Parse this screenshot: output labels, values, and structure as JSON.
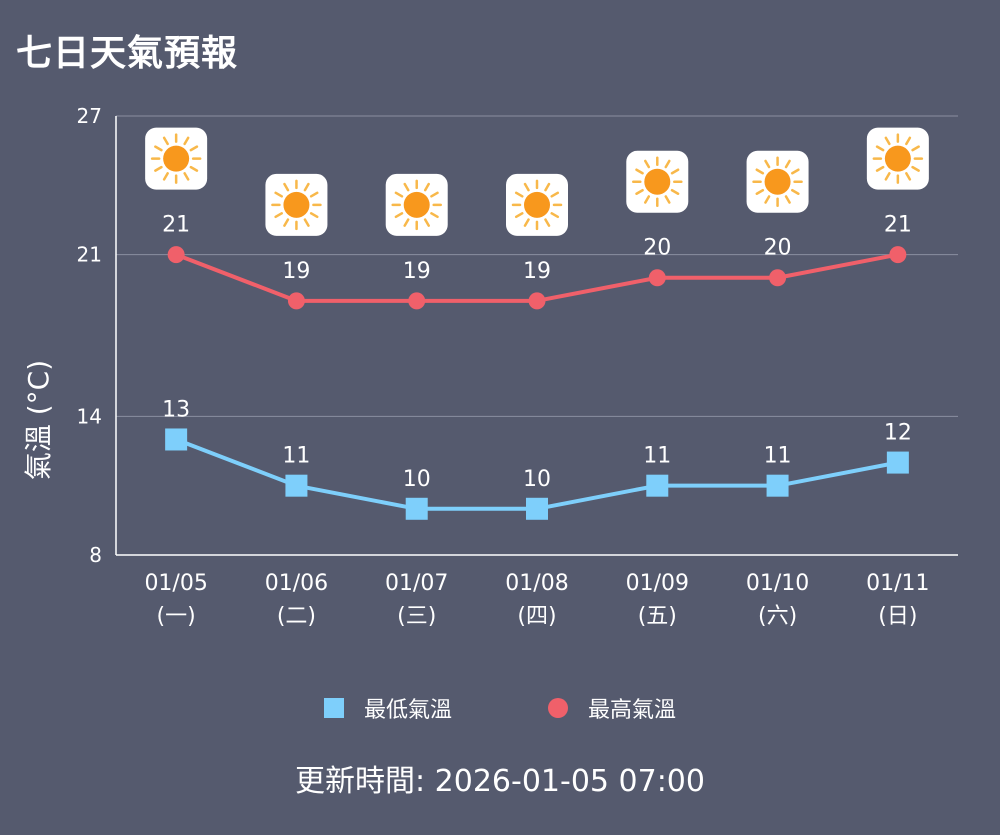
{
  "title": "七日天氣預報",
  "updated_label": "更新時間: 2026-01-05 07:00",
  "icons": [
    "sun-icon",
    "sun-icon",
    "sun-icon",
    "sun-icon",
    "sun-icon",
    "sun-icon",
    "sun-icon"
  ],
  "chart_data": {
    "type": "line",
    "categories": [
      "01/05",
      "01/06",
      "01/07",
      "01/08",
      "01/09",
      "01/10",
      "01/11"
    ],
    "weekdays": [
      "(一)",
      "(二)",
      "(三)",
      "(四)",
      "(五)",
      "(六)",
      "(日)"
    ],
    "ylabel": "氣溫 (°C)",
    "yticks": [
      8,
      14,
      21,
      27
    ],
    "ylim": [
      8,
      27
    ],
    "grid": true,
    "legend_position": "bottom",
    "series": [
      {
        "name": "最低氣溫",
        "marker": "square",
        "color": "#7ecffb",
        "values": [
          13,
          11,
          10,
          10,
          11,
          11,
          12
        ]
      },
      {
        "name": "最高氣溫",
        "marker": "circle",
        "color": "#f0606a",
        "values": [
          21,
          19,
          19,
          19,
          20,
          20,
          21
        ]
      }
    ]
  }
}
